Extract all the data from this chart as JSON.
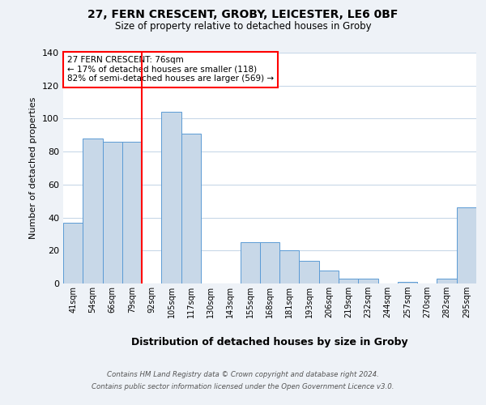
{
  "title1": "27, FERN CRESCENT, GROBY, LEICESTER, LE6 0BF",
  "title2": "Size of property relative to detached houses in Groby",
  "xlabel": "Distribution of detached houses by size in Groby",
  "ylabel": "Number of detached properties",
  "footer1": "Contains HM Land Registry data © Crown copyright and database right 2024.",
  "footer2": "Contains public sector information licensed under the Open Government Licence v3.0.",
  "annotation_line1": "27 FERN CRESCENT: 76sqm",
  "annotation_line2": "← 17% of detached houses are smaller (118)",
  "annotation_line3": "82% of semi-detached houses are larger (569) →",
  "bar_labels": [
    "41sqm",
    "54sqm",
    "66sqm",
    "79sqm",
    "92sqm",
    "105sqm",
    "117sqm",
    "130sqm",
    "143sqm",
    "155sqm",
    "168sqm",
    "181sqm",
    "193sqm",
    "206sqm",
    "219sqm",
    "232sqm",
    "244sqm",
    "257sqm",
    "270sqm",
    "282sqm",
    "295sqm"
  ],
  "bar_values": [
    37,
    88,
    86,
    86,
    0,
    104,
    91,
    0,
    0,
    25,
    25,
    20,
    14,
    8,
    3,
    3,
    0,
    1,
    0,
    3,
    46
  ],
  "bar_color": "#c8d8e8",
  "bar_edge_color": "#5b9bd5",
  "vline_x": 3.5,
  "vline_color": "red",
  "ylim": [
    0,
    140
  ],
  "yticks": [
    0,
    20,
    40,
    60,
    80,
    100,
    120,
    140
  ],
  "bg_color": "#eef2f7",
  "plot_bg_color": "#ffffff",
  "grid_color": "#c8d8e8"
}
